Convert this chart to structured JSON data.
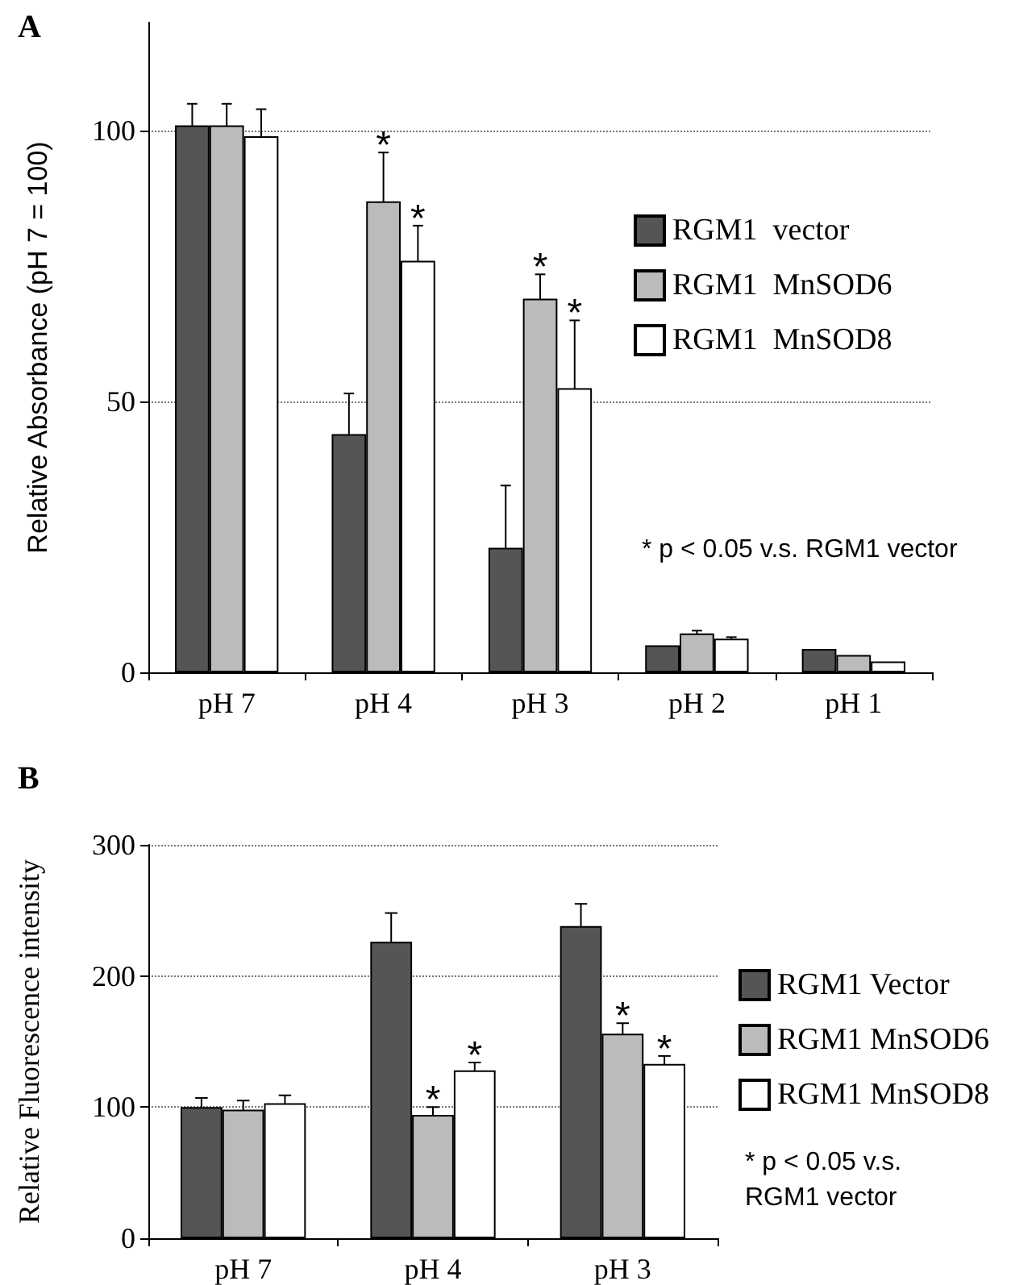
{
  "chart_data": [
    {
      "type": "bar",
      "title": "A",
      "ylabel": "Relative Absorbance (pH 7 = 100)",
      "categories": [
        "pH 7",
        "pH 4",
        "pH 3",
        "pH 2",
        "pH 1"
      ],
      "series": [
        {
          "name": "RGM1  vector",
          "color": "#555555",
          "values": [
            101,
            44,
            23,
            5,
            4.3
          ],
          "errors": [
            4,
            7.5,
            11.5,
            null,
            null
          ]
        },
        {
          "name": "RGM1  MnSOD6",
          "color": "#bbbbbb",
          "values": [
            101,
            87,
            69,
            7.2,
            3.2
          ],
          "errors": [
            4,
            9,
            4.5,
            0.5,
            null
          ],
          "value_labels": [
            null,
            "*",
            "*",
            null,
            null
          ]
        },
        {
          "name": "RGM1  MnSOD8",
          "color": "#ffffff",
          "values": [
            99,
            76,
            52.5,
            6.2,
            2
          ],
          "errors": [
            5,
            6.5,
            12.5,
            0.3,
            null
          ],
          "value_labels": [
            null,
            "*",
            "*",
            null,
            null
          ]
        }
      ],
      "ylim": [
        0,
        120
      ],
      "yticks": [
        0,
        50,
        100
      ],
      "grid": "y",
      "legend": "right",
      "annotations": [
        "* p < 0.05 v.s. RGM1 vector"
      ]
    },
    {
      "type": "bar",
      "title": "B",
      "ylabel": "Relative Fluorescence intensity",
      "categories": [
        "pH 7",
        "pH 4",
        "pH 3"
      ],
      "series": [
        {
          "name": "RGM1 Vector",
          "color": "#555555",
          "values": [
            100,
            226,
            238
          ],
          "errors": [
            7,
            22,
            17
          ]
        },
        {
          "name": "RGM1 MnSOD6",
          "color": "#bbbbbb",
          "values": [
            98,
            94,
            156
          ],
          "errors": [
            7,
            6,
            8
          ],
          "value_labels": [
            null,
            "*",
            "*"
          ]
        },
        {
          "name": "RGM1 MnSOD8",
          "color": "#ffffff",
          "values": [
            103,
            128,
            133
          ],
          "errors": [
            6,
            6,
            6
          ],
          "value_labels": [
            null,
            "*",
            "*"
          ]
        }
      ],
      "ylim": [
        0,
        300
      ],
      "yticks": [
        0,
        100,
        200,
        300
      ],
      "grid": "y",
      "legend": "right",
      "annotations": [
        "* p < 0.05 v.s. RGM1 vector"
      ]
    }
  ]
}
